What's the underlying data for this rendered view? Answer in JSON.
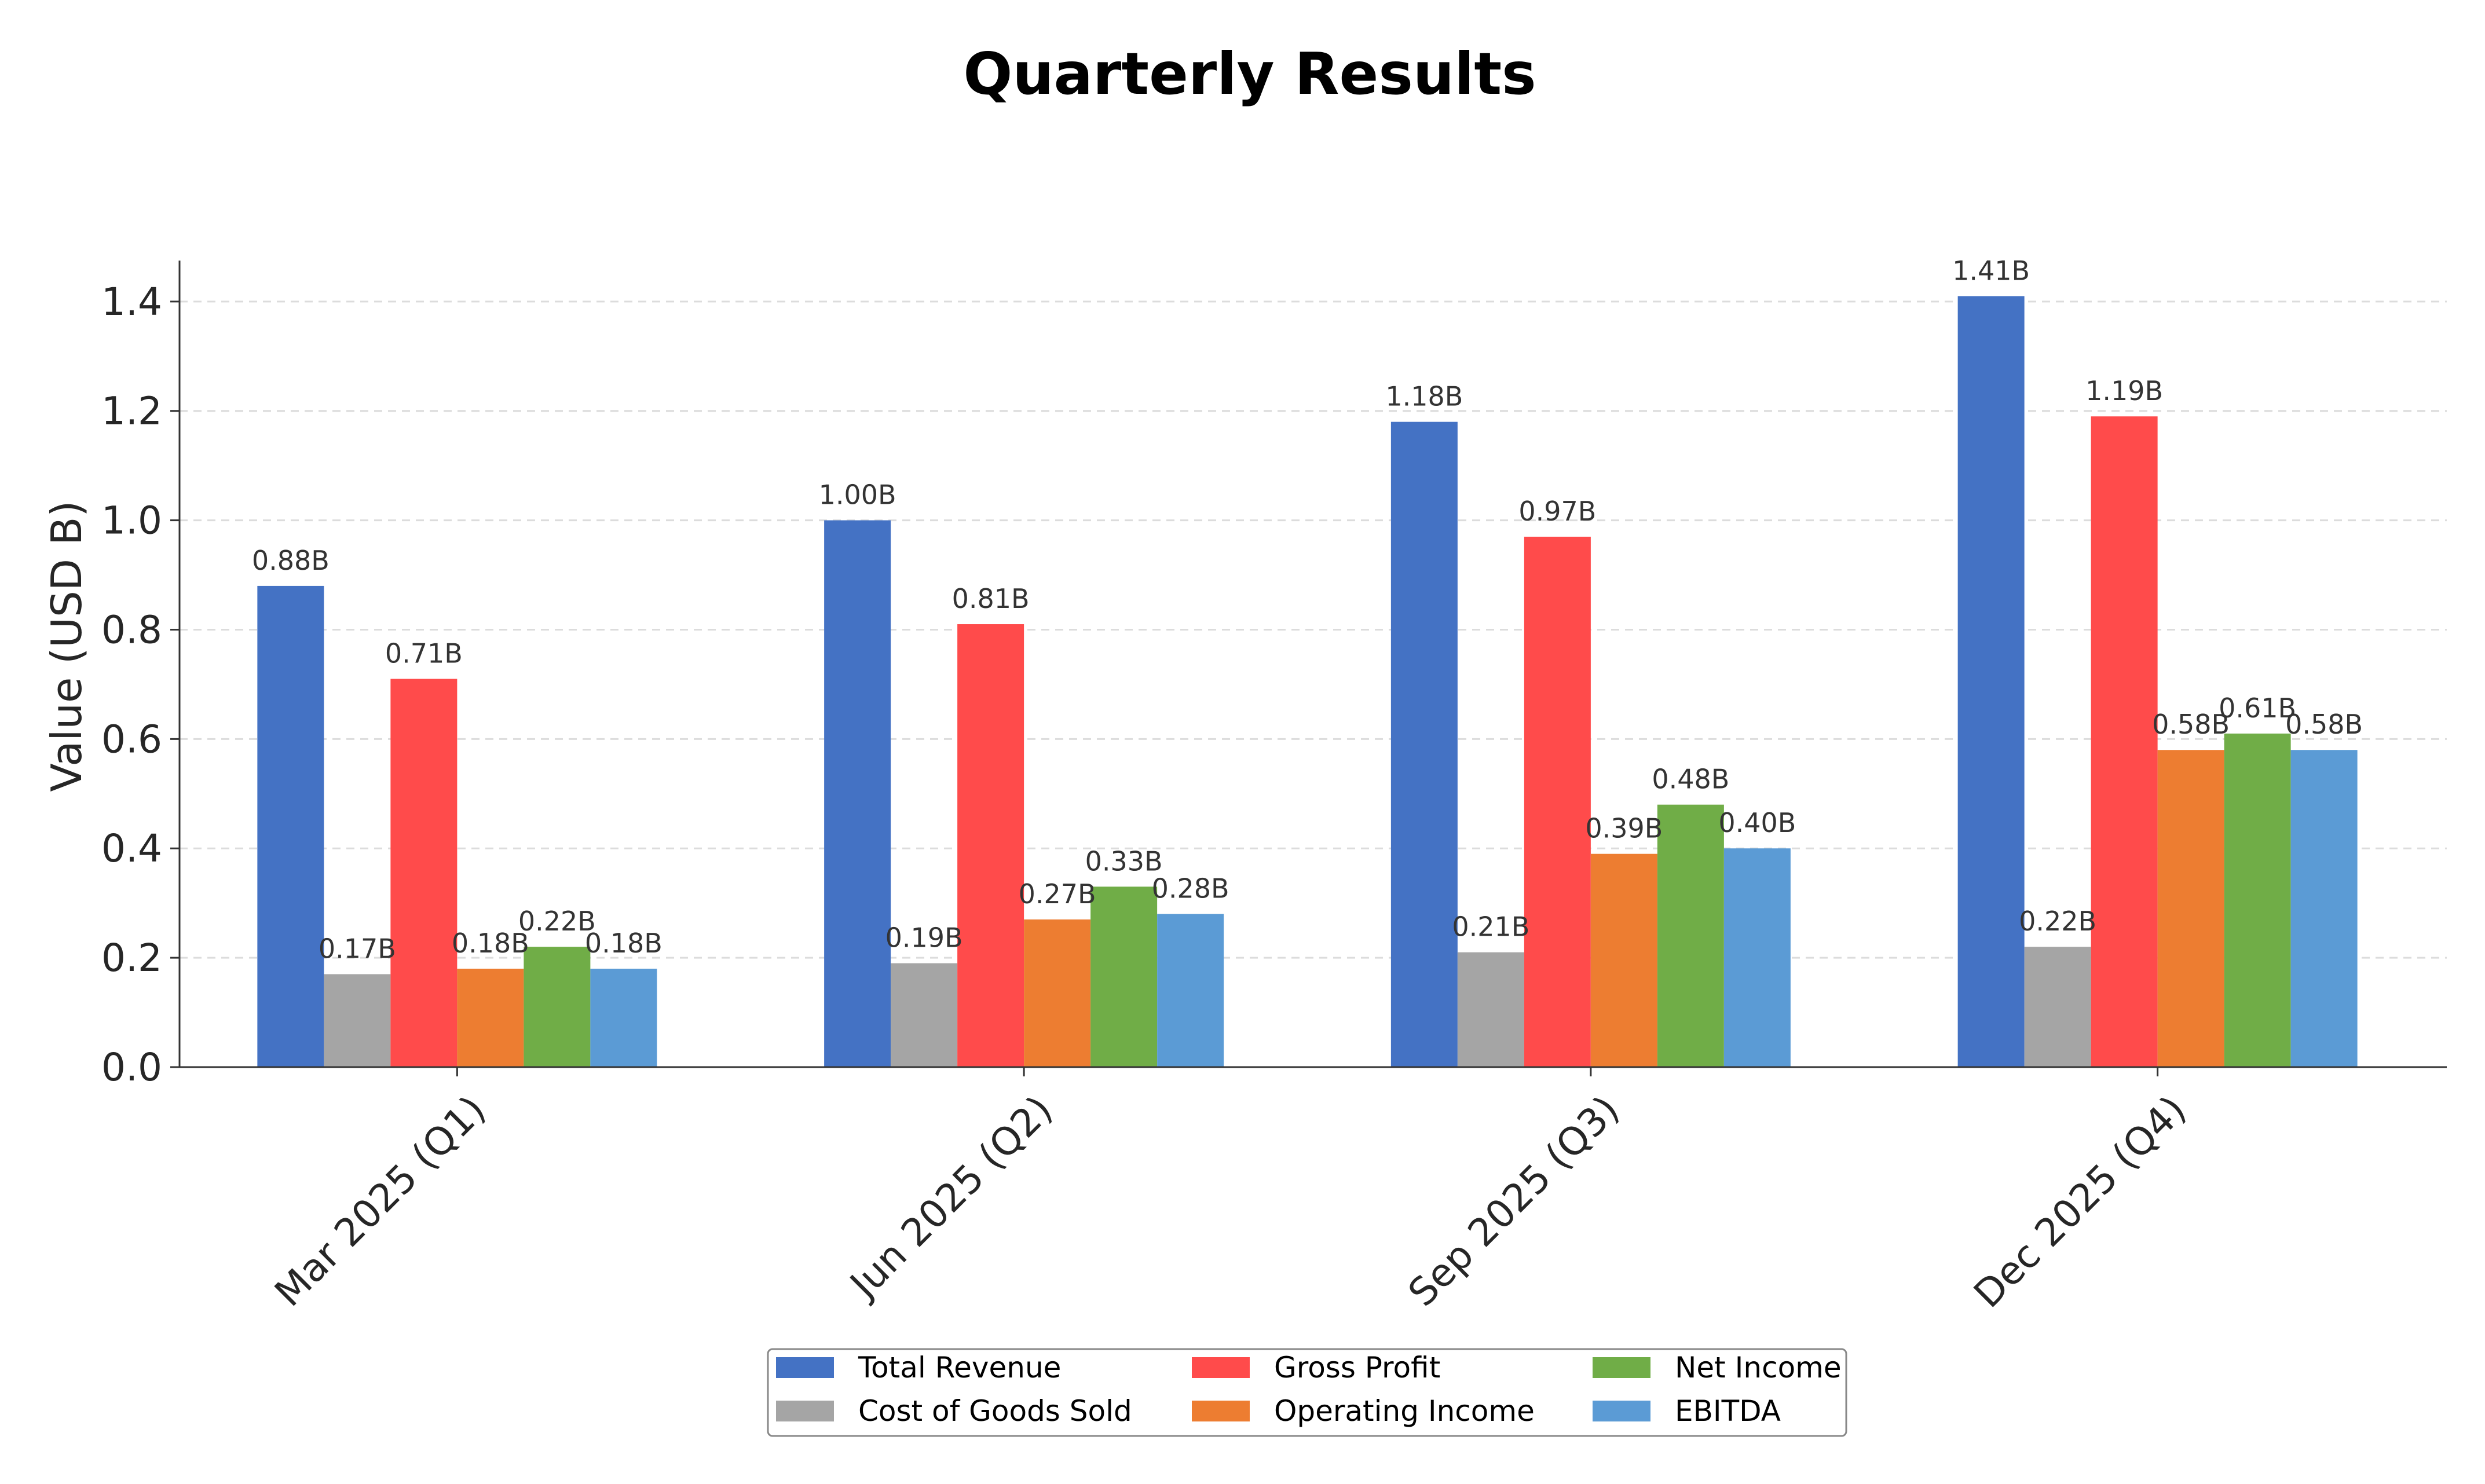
{
  "chart_data": {
    "type": "bar",
    "title": "Quarterly Results",
    "xlabel": "",
    "ylabel": "Value (USD B)",
    "ylim": [
      0,
      1.475
    ],
    "yticks": [
      "0.0",
      "0.2",
      "0.4",
      "0.6",
      "0.8",
      "1.0",
      "1.2",
      "1.4"
    ],
    "grid": "horizontal-dashed",
    "legend_position": "bottom-center",
    "categories": [
      "Mar 2025 (Q1)",
      "Jun 2025 (Q2)",
      "Sep 2025 (Q3)",
      "Dec 2025 (Q4)"
    ],
    "series": [
      {
        "name": "Total Revenue",
        "color": "#4472C4",
        "values": [
          0.88,
          1.0,
          1.18,
          1.41
        ],
        "labels": [
          "0.88B",
          "1.00B",
          "1.18B",
          "1.41B"
        ]
      },
      {
        "name": "Cost of Goods Sold",
        "color": "#A5A5A5",
        "values": [
          0.17,
          0.19,
          0.21,
          0.22
        ],
        "labels": [
          "0.17B",
          "0.19B",
          "0.21B",
          "0.22B"
        ]
      },
      {
        "name": "Gross Profit",
        "color": "#FF4B4B",
        "values": [
          0.71,
          0.81,
          0.97,
          1.19
        ],
        "labels": [
          "0.71B",
          "0.81B",
          "0.97B",
          "1.19B"
        ]
      },
      {
        "name": "Operating Income",
        "color": "#ED7D31",
        "values": [
          0.18,
          0.27,
          0.39,
          0.58
        ],
        "labels": [
          "0.18B",
          "0.27B",
          "0.39B",
          "0.58B"
        ]
      },
      {
        "name": "Net Income",
        "color": "#70AD47",
        "values": [
          0.22,
          0.33,
          0.48,
          0.61
        ],
        "labels": [
          "0.22B",
          "0.33B",
          "0.48B",
          "0.61B"
        ]
      },
      {
        "name": "EBITDA",
        "color": "#5B9BD5",
        "values": [
          0.18,
          0.28,
          0.4,
          0.58
        ],
        "labels": [
          "0.18B",
          "0.28B",
          "0.40B",
          "0.58B"
        ]
      }
    ]
  }
}
